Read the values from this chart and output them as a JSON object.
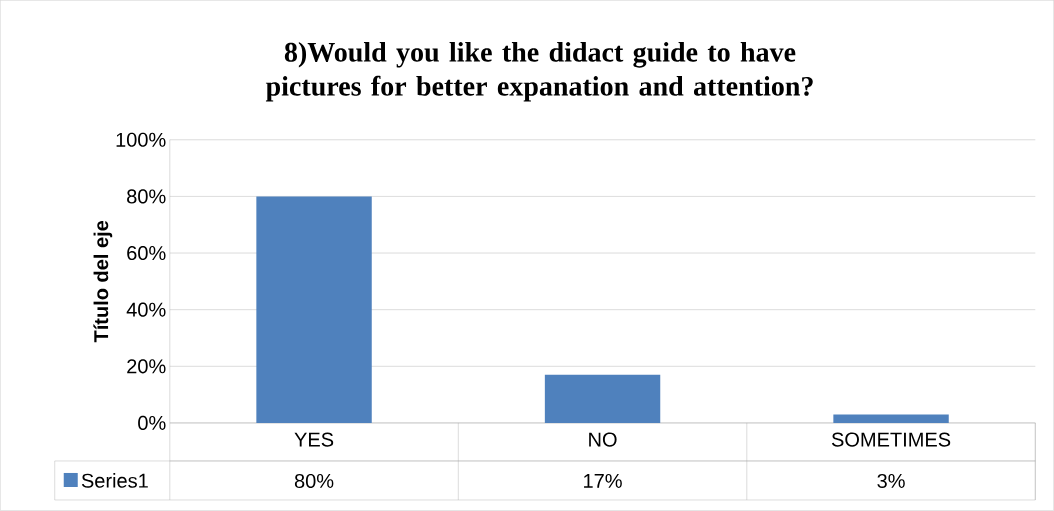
{
  "chart_data": {
    "type": "bar",
    "title": "8)Would you like the didact guide to have pictures for better expanation and attention?",
    "ylabel": "Título del eje",
    "categories": [
      "YES",
      "NO",
      "SOMETIMES"
    ],
    "series": [
      {
        "name": "Series1",
        "color": "#4f81bd",
        "values": [
          80,
          17,
          3
        ],
        "value_labels": [
          "80%",
          "17%",
          "3%"
        ]
      }
    ],
    "ylim": [
      0,
      100
    ],
    "yticks": [
      {
        "value": 0,
        "label": "0%"
      },
      {
        "value": 20,
        "label": "20%"
      },
      {
        "value": 40,
        "label": "40%"
      },
      {
        "value": 60,
        "label": "60%"
      },
      {
        "value": 80,
        "label": "80%"
      },
      {
        "value": 100,
        "label": "100%"
      }
    ],
    "grid": "y",
    "legend": "bottom"
  }
}
